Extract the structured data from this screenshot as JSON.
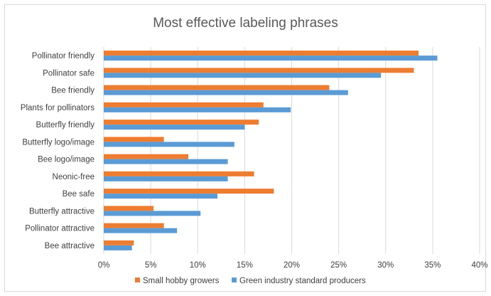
{
  "chart_data": {
    "type": "bar",
    "orientation": "horizontal",
    "title": "Most effective labeling phrases",
    "categories": [
      "Pollinator friendly",
      "Pollinator safe",
      "Bee friendly",
      "Plants for pollinators",
      "Butterfly friendly",
      "Butterfly logo/image",
      "Bee logo/image",
      "Neonic-free",
      "Bee safe",
      "Butterfly attractive",
      "Pollinator attractive",
      "Bee attractive"
    ],
    "series": [
      {
        "name": "Small hobby growers",
        "color": "#ed7d31",
        "values": [
          33.5,
          33,
          24,
          17,
          16.5,
          6.4,
          9,
          16,
          18.1,
          5.3,
          6.4,
          3.2
        ]
      },
      {
        "name": "Green industry standard producers",
        "color": "#5b9bd5",
        "values": [
          35.5,
          29.5,
          26,
          19.9,
          15,
          13.9,
          13.2,
          13.2,
          12.1,
          10.3,
          7.8,
          3
        ]
      }
    ],
    "xlim": [
      0,
      40
    ],
    "xticks": [
      0,
      5,
      10,
      15,
      20,
      25,
      30,
      35,
      40
    ],
    "tick_format": "%",
    "grid": "vertical",
    "legend": "bottom"
  }
}
